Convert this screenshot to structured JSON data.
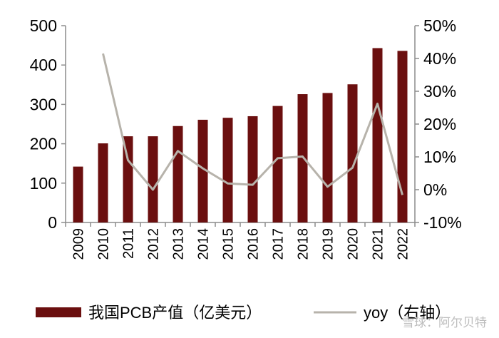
{
  "chart_data": {
    "type": "bar",
    "categories": [
      "2009",
      "2010",
      "2011",
      "2012",
      "2013",
      "2014",
      "2015",
      "2016",
      "2017",
      "2018",
      "2019",
      "2020",
      "2021",
      "2022"
    ],
    "series": [
      {
        "name": "我国PCB产值（亿美元）",
        "type": "bar",
        "axis": "left",
        "color": "#6b0f0f",
        "values": [
          142,
          201,
          219,
          219,
          245,
          261,
          266,
          270,
          296,
          326,
          329,
          351,
          443,
          436
        ]
      },
      {
        "name": "yoy（右轴）",
        "type": "line",
        "axis": "right",
        "color": "#b7b3ab",
        "values": [
          null,
          41.5,
          9.0,
          0.0,
          11.8,
          6.5,
          1.9,
          1.5,
          9.6,
          10.1,
          0.9,
          6.7,
          26.2,
          -1.6
        ]
      }
    ],
    "y_left": {
      "ylim": [
        0,
        500
      ],
      "ticks": [
        0,
        100,
        200,
        300,
        400,
        500
      ]
    },
    "y_right": {
      "ylim": [
        -10,
        50
      ],
      "ticks": [
        "-10%",
        "0%",
        "10%",
        "20%",
        "30%",
        "40%",
        "50%"
      ]
    },
    "legend": "bottom",
    "grid": false
  },
  "watermark": "雪球：阿尔贝特"
}
